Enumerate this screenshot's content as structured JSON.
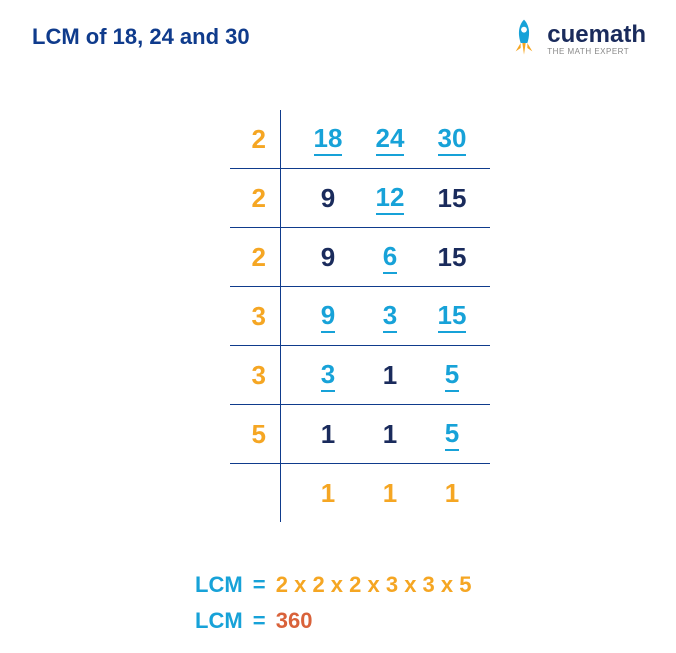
{
  "title": "LCM of 18, 24 and 30",
  "title_color": "#0f3b8c",
  "logo": {
    "text": "cuemath",
    "sub": "THE MATH EXPERT"
  },
  "colors": {
    "divisor": "#f5a623",
    "divisible": "#17a2d8",
    "carry": "#1a2b5c",
    "line": "#0f3b8c",
    "lcm_label": "#17a2d8",
    "result": "#d9623a"
  },
  "fontsize": {
    "title": 22,
    "cell": 26,
    "result": 22
  },
  "rows": [
    {
      "divisor": "2",
      "cells": [
        {
          "v": "18",
          "u": true
        },
        {
          "v": "24",
          "u": true
        },
        {
          "v": "30",
          "u": true
        }
      ]
    },
    {
      "divisor": "2",
      "cells": [
        {
          "v": "9",
          "u": false
        },
        {
          "v": "12",
          "u": true
        },
        {
          "v": "15",
          "u": false
        }
      ]
    },
    {
      "divisor": "2",
      "cells": [
        {
          "v": "9",
          "u": false
        },
        {
          "v": "6",
          "u": true
        },
        {
          "v": "15",
          "u": false
        }
      ]
    },
    {
      "divisor": "3",
      "cells": [
        {
          "v": "9",
          "u": true
        },
        {
          "v": "3",
          "u": true
        },
        {
          "v": "15",
          "u": true
        }
      ]
    },
    {
      "divisor": "3",
      "cells": [
        {
          "v": "3",
          "u": true
        },
        {
          "v": "1",
          "u": false
        },
        {
          "v": "5",
          "u": true
        }
      ]
    },
    {
      "divisor": "5",
      "cells": [
        {
          "v": "1",
          "u": false
        },
        {
          "v": "1",
          "u": false
        },
        {
          "v": "5",
          "u": true
        }
      ]
    },
    {
      "divisor": "",
      "cells": [
        {
          "v": "1",
          "u": false
        },
        {
          "v": "1",
          "u": false
        },
        {
          "v": "1",
          "u": false
        }
      ]
    }
  ],
  "result_line1": {
    "label": "LCM",
    "eq": "=",
    "expr": "2 x 2 x 2 x 3 x 3 x 5"
  },
  "result_line2": {
    "label": "LCM",
    "eq": "=",
    "value": "360"
  }
}
